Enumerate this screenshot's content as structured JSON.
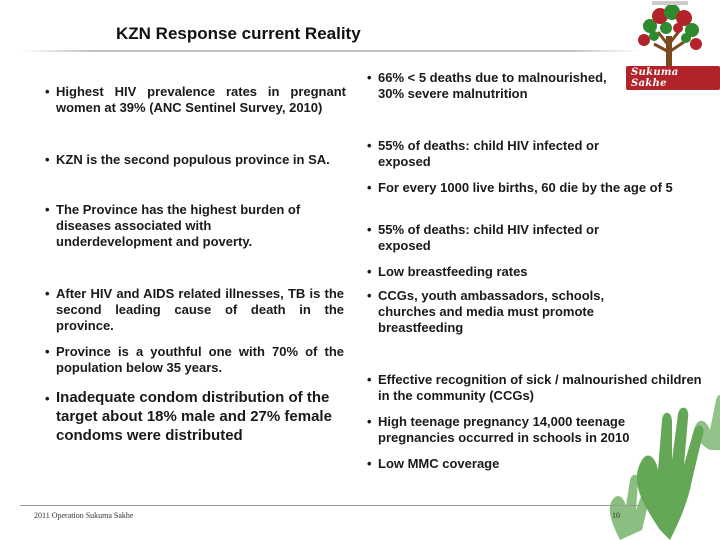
{
  "slide": {
    "title": "KZN Response current Reality",
    "left_bullets": [
      "Highest HIV prevalence rates in pregnant women at 39% (ANC Sentinel Survey, 2010)",
      "KZN is the second populous province in SA.",
      "The Province has the highest burden of diseases associated with underdevelopment and poverty.",
      "After HIV and AIDS related illnesses, TB is the second leading cause of death in the province.",
      "Province is a youthful one with 70% of the population below 35 years.",
      "Inadequate condom distribution of the target about 18% male and 27% female condoms were distributed"
    ],
    "right_bullets": [
      "66% < 5 deaths due to malnourished, 30% severe malnutrition",
      "55% of deaths: child HIV infected or exposed",
      "For every 1000 live births, 60 die by the age of 5",
      "55% of deaths: child HIV infected or exposed",
      "Low breastfeeding rates",
      "CCGs, youth ambassadors, schools, churches and media must promote breastfeeding",
      "Effective recognition of sick / malnourished children in the community (CCGs)",
      "High teenage pregnancy 14,000 teenage pregnancies occurred in schools in 2010",
      "Low MMC coverage"
    ],
    "bullet_char": "•",
    "logo_text": "Sukuma Sakhe",
    "footer": "2011 Operation Sukuma Sakhe",
    "page_number": "10"
  },
  "colors": {
    "text": "#1a1a1a",
    "logo_red": "#b2232a",
    "logo_green": "#2f8a2f",
    "hands_green": "#4a9a3a"
  }
}
